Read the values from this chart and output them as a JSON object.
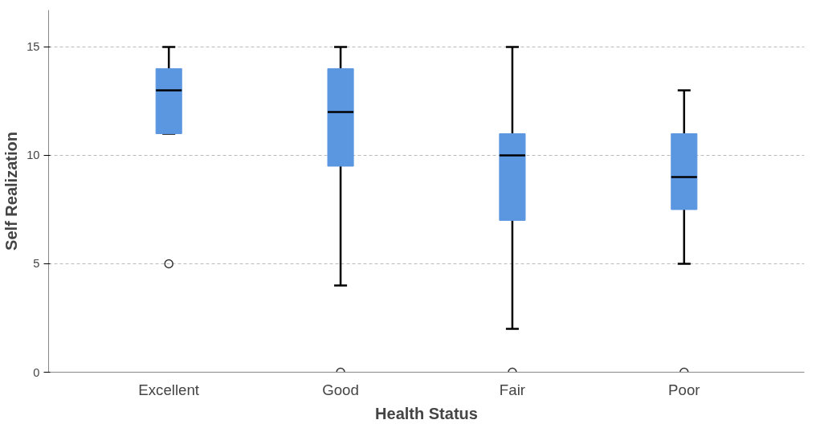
{
  "chart_data": {
    "type": "box",
    "xlabel": "Health Status",
    "ylabel": "Self Realization",
    "categories": [
      "Excellent",
      "Good",
      "Fair",
      "Poor"
    ],
    "color": "#5b96e0",
    "ylim": [
      0,
      16.7
    ],
    "yticks": [
      0,
      5,
      10,
      15
    ],
    "grid": "y",
    "boxes": [
      {
        "low": 11,
        "q1": 11,
        "median": 13,
        "q3": 14,
        "high": 15,
        "outliers": [
          5
        ]
      },
      {
        "low": 4,
        "q1": 9.5,
        "median": 12,
        "q3": 14,
        "high": 15,
        "outliers": [
          0
        ]
      },
      {
        "low": 2,
        "q1": 7,
        "median": 10,
        "q3": 11,
        "high": 15,
        "outliers": [
          0
        ]
      },
      {
        "low": 5,
        "q1": 7.5,
        "median": 9,
        "q3": 11,
        "high": 13,
        "outliers": [
          0
        ]
      }
    ]
  }
}
